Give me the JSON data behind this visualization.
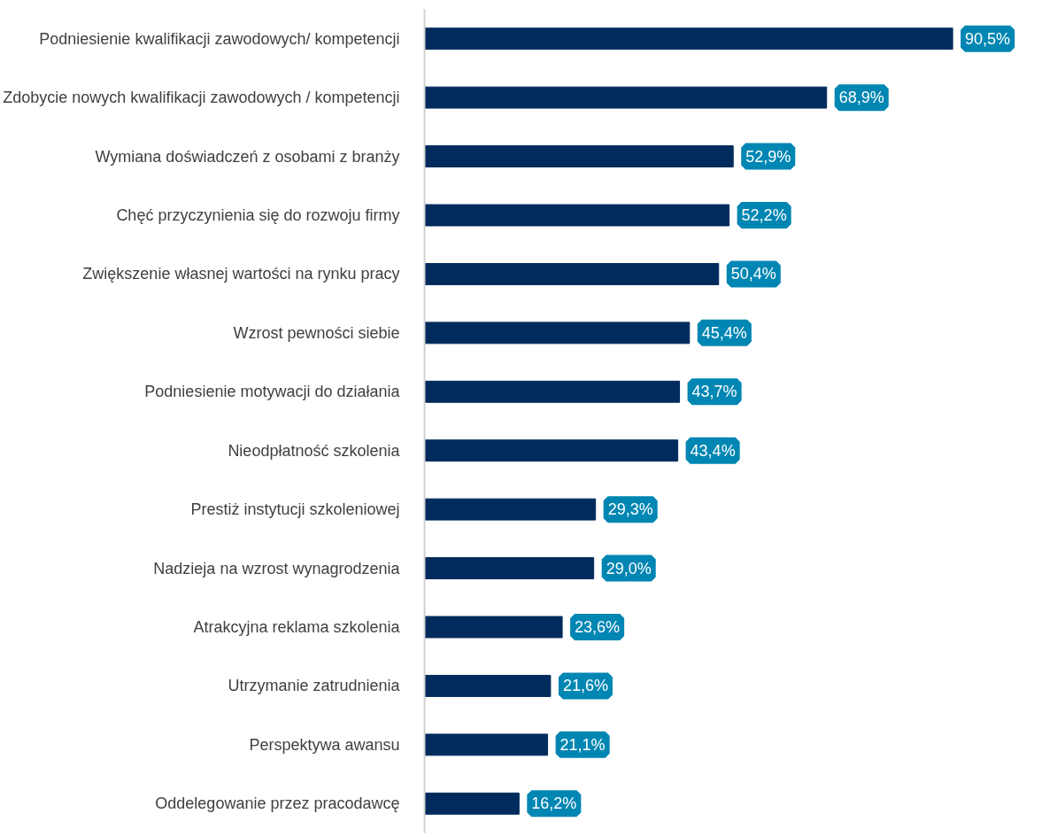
{
  "chart_data": {
    "type": "bar",
    "orientation": "horizontal",
    "categories": [
      "Podniesienie kwalifikacji zawodowych/ kompetencji",
      "Zdobycie nowych kwalifikacji zawodowych / kompetencji",
      "Wymiana doświadczeń z osobami z branży",
      "Chęć przyczynienia się do rozwoju firmy",
      "Zwiększenie własnej wartości na rynku pracy",
      "Wzrost pewności siebie",
      "Podniesienie motywacji do działania",
      "Nieodpłatność szkolenia",
      "Prestiż instytucji szkoleniowej",
      "Nadzieja na wzrost wynagrodzenia",
      "Atrakcyjna reklama szkolenia",
      "Utrzymanie zatrudnienia",
      "Perspektywa awansu",
      "Oddelegowanie przez pracodawcę"
    ],
    "values": [
      90.5,
      68.9,
      52.9,
      52.2,
      50.4,
      45.4,
      43.7,
      43.4,
      29.3,
      29.0,
      23.6,
      21.6,
      21.1,
      16.2
    ],
    "value_labels": [
      "90,5%",
      "68,9%",
      "52,9%",
      "52,2%",
      "50,4%",
      "45,4%",
      "43,7%",
      "43,4%",
      "29,3%",
      "29,0%",
      "23,6%",
      "21,6%",
      "21,1%",
      "16,2%"
    ],
    "color": "#002b5c",
    "grid": false,
    "tick_labels": "y"
  }
}
